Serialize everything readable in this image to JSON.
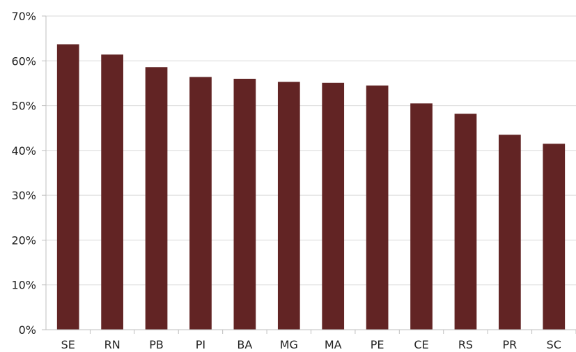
{
  "chart_data": {
    "type": "bar",
    "title": "",
    "xlabel": "",
    "ylabel": "",
    "categories": [
      "SE",
      "RN",
      "PB",
      "PI",
      "BA",
      "MG",
      "MA",
      "PE",
      "CE",
      "RS",
      "PR",
      "SC"
    ],
    "values": [
      63.7,
      61.4,
      58.6,
      56.4,
      56.0,
      55.3,
      55.1,
      54.5,
      50.5,
      48.2,
      43.5,
      41.5
    ],
    "ylim": [
      0,
      70
    ],
    "yticks": [
      "0%",
      "10%",
      "20%",
      "30%",
      "40%",
      "50%",
      "60%",
      "70%"
    ],
    "grid": true,
    "bar_color": "#622424",
    "grid_color": "#d9d9d9",
    "axis_color": "#bfbfbf"
  }
}
